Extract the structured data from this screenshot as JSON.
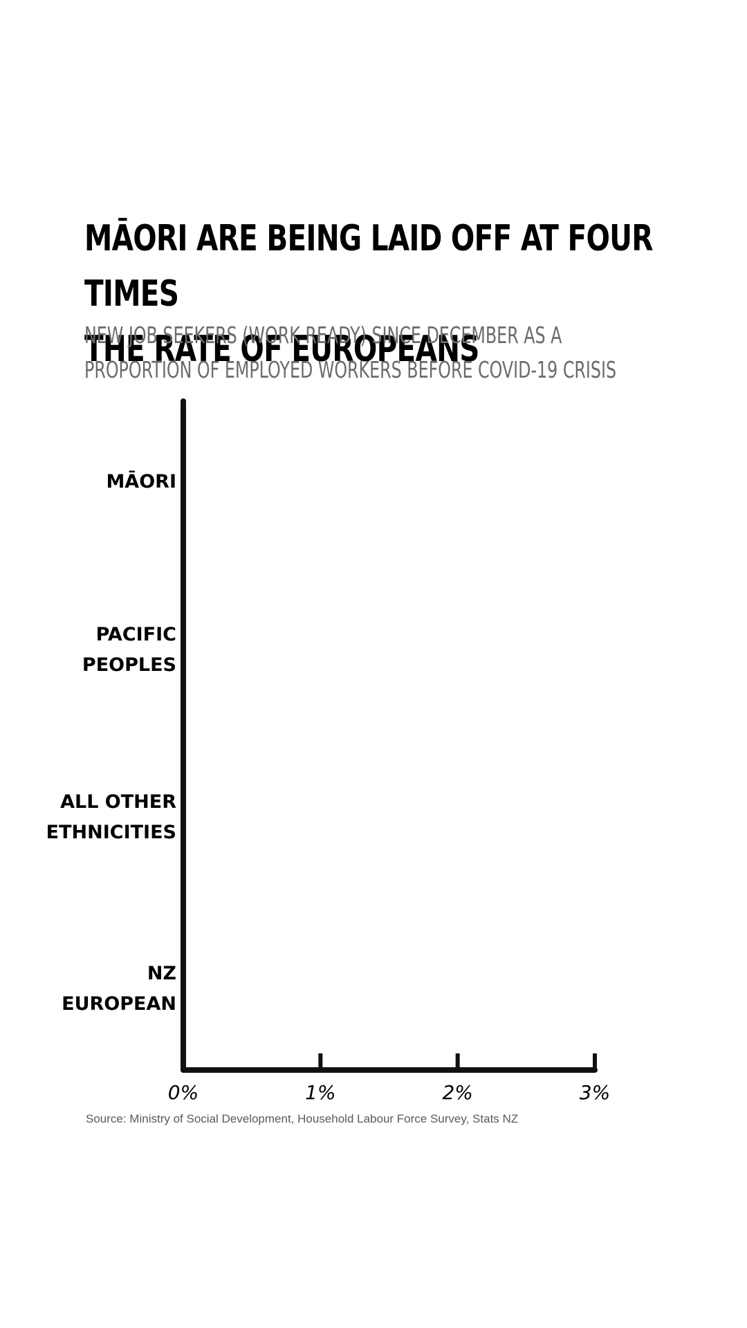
{
  "title_line1": "MĀORI ARE BEING LAID OFF AT FOUR TIMES",
  "title_line2": "THE RATE OF EUROPEANS",
  "subtitle_line1": "NEW JOB SEEKERS (WORK READY) SINCE DECEMBER AS A",
  "subtitle_line2": "PROPORTION OF EMPLOYED WORKERS BEFORE COVID-19 CRISIS",
  "source": "Source: Ministry of Social Development, Household Labour Force Survey, Stats NZ",
  "colors": {
    "axis": "#111111",
    "subtitle": "#6b6b6b",
    "source": "#5a5a5a"
  },
  "chart_data": {
    "type": "bar",
    "orientation": "horizontal",
    "title": "MĀORI ARE BEING LAID OFF AT FOUR TIMES THE RATE OF EUROPEANS",
    "subtitle": "NEW JOB SEEKERS (WORK READY) SINCE DECEMBER AS A PROPORTION OF EMPLOYED WORKERS BEFORE COVID-19 CRISIS",
    "categories": [
      [
        "MĀORI"
      ],
      [
        "PACIFIC",
        "PEOPLES"
      ],
      [
        "ALL OTHER",
        "ETHNICITIES"
      ],
      [
        "NZ",
        "EUROPEAN"
      ]
    ],
    "values": [
      null,
      null,
      null,
      null
    ],
    "x_ticks": [
      "0%",
      "1%",
      "2%",
      "3%"
    ],
    "xlim": [
      0,
      3
    ],
    "x_unit": "%",
    "grid": false,
    "legend": "none"
  }
}
